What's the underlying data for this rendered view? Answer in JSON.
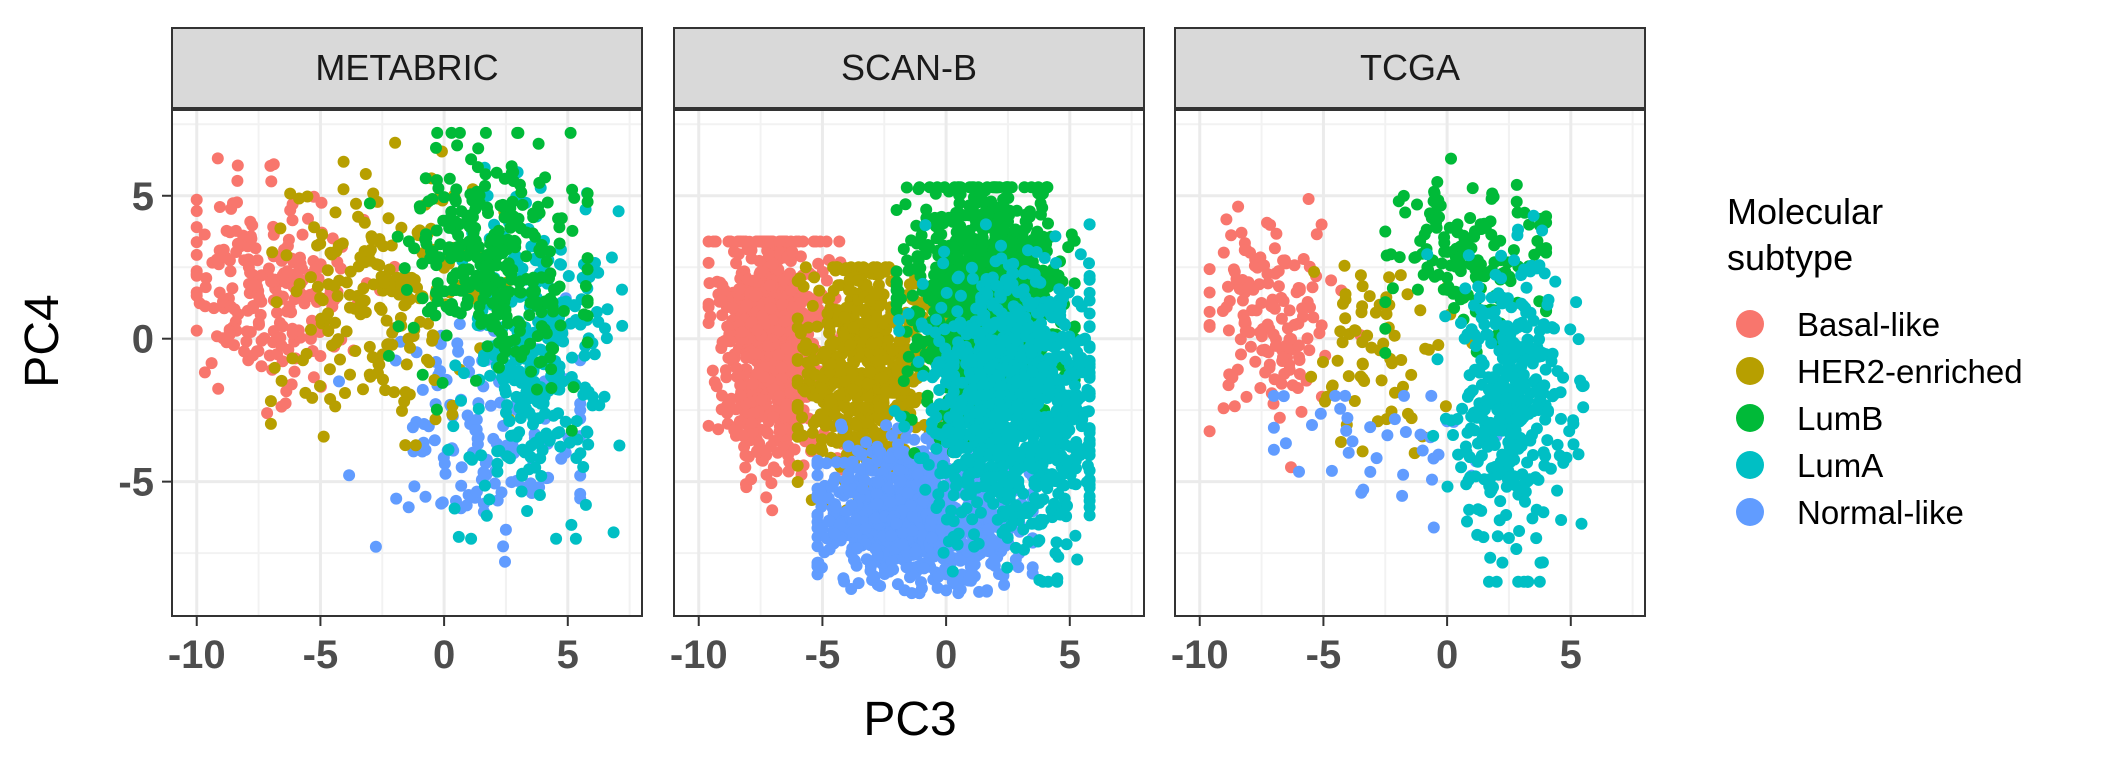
{
  "chart_data": {
    "type": "scatter",
    "xlabel": "PC3",
    "ylabel": "PC4",
    "xlim": [
      -11,
      8
    ],
    "ylim": [
      -9.7,
      8
    ],
    "x_ticks": [
      -10,
      -5,
      0,
      5
    ],
    "x_tick_labels": [
      "-10",
      "-5",
      "0",
      "5"
    ],
    "y_ticks": [
      -5,
      0,
      5
    ],
    "y_tick_labels": [
      "-5",
      "0",
      "5"
    ],
    "grid": true,
    "legend_position": "right",
    "legend": {
      "title_lines": [
        "Molecular",
        "subtype"
      ],
      "entries": [
        {
          "name": "Basal-like",
          "color": "#F8766D"
        },
        {
          "name": "HER2-enriched",
          "color": "#B79F00"
        },
        {
          "name": "LumB",
          "color": "#00BA38"
        },
        {
          "name": "LumA",
          "color": "#00BFC4"
        },
        {
          "name": "Normal-like",
          "color": "#619CFF"
        }
      ]
    },
    "panels": [
      {
        "name": "METABRIC",
        "series": [
          {
            "name": "Normal-like",
            "n": 140,
            "cx": 1.5,
            "cy": -3.2,
            "sx": 2.2,
            "sy": 1.9,
            "xr": [
              -7.5,
              5.5
            ],
            "yr": [
              -7.8,
              2.5
            ]
          },
          {
            "name": "Basal-like",
            "n": 220,
            "cx": -7.2,
            "cy": 1.6,
            "sx": 1.8,
            "sy": 1.7,
            "xr": [
              -10,
              -2
            ],
            "yr": [
              -3.5,
              6.4
            ]
          },
          {
            "name": "HER2-enriched",
            "n": 200,
            "cx": -2.6,
            "cy": 1.6,
            "sx": 2.2,
            "sy": 2.2,
            "xr": [
              -7,
              4.5
            ],
            "yr": [
              -4,
              7
            ]
          },
          {
            "name": "LumA",
            "n": 320,
            "cx": 3.6,
            "cy": -0.8,
            "sx": 1.4,
            "sy": 2.6,
            "xr": [
              -1.5,
              7.2
            ],
            "yr": [
              -7,
              6.8
            ]
          },
          {
            "name": "LumB",
            "n": 320,
            "cx": 2.1,
            "cy": 2.6,
            "sx": 1.8,
            "sy": 2.0,
            "xr": [
              -3,
              5.8
            ],
            "yr": [
              -3.5,
              7.2
            ]
          }
        ]
      },
      {
        "name": "SCAN-B",
        "series": [
          {
            "name": "Basal-like",
            "n": 800,
            "cx": -7.0,
            "cy": -0.2,
            "sx": 1.1,
            "sy": 2.2,
            "xr": [
              -9.6,
              -4.2
            ],
            "yr": [
              -6,
              3.4
            ]
          },
          {
            "name": "HER2-enriched",
            "n": 600,
            "cx": -3.2,
            "cy": -1.3,
            "sx": 1.3,
            "sy": 1.9,
            "xr": [
              -6,
              0.5
            ],
            "yr": [
              -6,
              2.5
            ]
          },
          {
            "name": "Normal-like",
            "n": 850,
            "cx": -1.0,
            "cy": -6.2,
            "sx": 2.1,
            "sy": 1.2,
            "xr": [
              -5.2,
              3.5
            ],
            "yr": [
              -8.9,
              -3
            ]
          },
          {
            "name": "LumB",
            "n": 1000,
            "cx": 1.6,
            "cy": 1.4,
            "sx": 1.5,
            "sy": 2.1,
            "xr": [
              -2,
              5.2
            ],
            "yr": [
              -4,
              5.3
            ]
          },
          {
            "name": "LumA",
            "n": 1100,
            "cx": 2.8,
            "cy": -2.3,
            "sx": 1.6,
            "sy": 2.3,
            "xr": [
              -2.5,
              5.8
            ],
            "yr": [
              -8.5,
              4
            ]
          }
        ]
      },
      {
        "name": "TCGA",
        "series": [
          {
            "name": "Basal-like",
            "n": 150,
            "cx": -7.0,
            "cy": 1.0,
            "sx": 1.3,
            "sy": 1.8,
            "xr": [
              -9.6,
              -3.5
            ],
            "yr": [
              -4.5,
              5
            ]
          },
          {
            "name": "HER2-enriched",
            "n": 70,
            "cx": -3.0,
            "cy": -0.6,
            "sx": 1.5,
            "sy": 1.8,
            "xr": [
              -5.5,
              1.5
            ],
            "yr": [
              -4,
              4
            ]
          },
          {
            "name": "Normal-like",
            "n": 40,
            "cx": -2.8,
            "cy": -4.0,
            "sx": 2.4,
            "sy": 1.6,
            "xr": [
              -7,
              2
            ],
            "yr": [
              -8,
              -2
            ]
          },
          {
            "name": "LumB",
            "n": 150,
            "cx": 0.8,
            "cy": 2.8,
            "sx": 1.6,
            "sy": 1.3,
            "xr": [
              -2.5,
              4
            ],
            "yr": [
              -0.5,
              6.3
            ]
          },
          {
            "name": "LumA",
            "n": 380,
            "cx": 2.6,
            "cy": -2.0,
            "sx": 1.1,
            "sy": 2.7,
            "xr": [
              -1.5,
              6.5
            ],
            "yr": [
              -8.5,
              4.3
            ]
          }
        ]
      }
    ]
  }
}
